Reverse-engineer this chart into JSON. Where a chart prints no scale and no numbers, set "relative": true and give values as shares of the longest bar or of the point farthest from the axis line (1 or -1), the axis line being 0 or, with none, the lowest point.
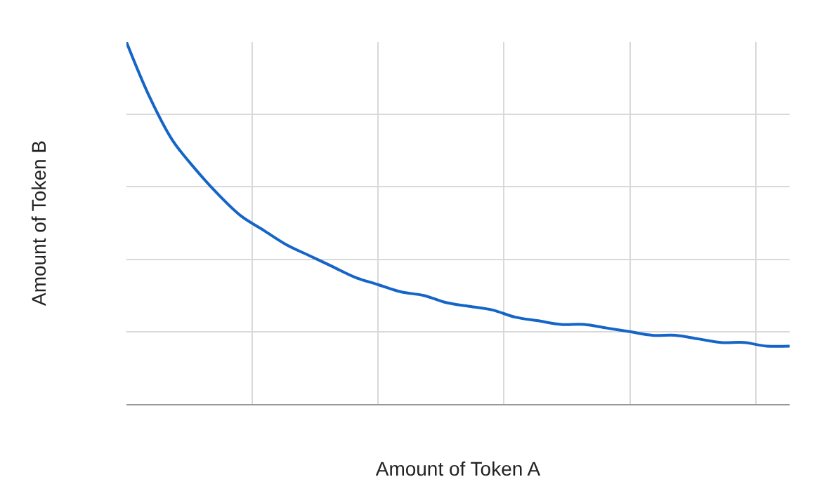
{
  "chart_data": {
    "type": "line",
    "relative": true,
    "xlabel": "Amount of Token A",
    "ylabel": "Amount of Token B",
    "grid": true,
    "marker": "none",
    "line_style": "solid",
    "categories": [
      null,
      null,
      null,
      null,
      null,
      null,
      null,
      null,
      null,
      null,
      null,
      null,
      null,
      null,
      null,
      null,
      null,
      null,
      null,
      null,
      null,
      null,
      null,
      null,
      null,
      null,
      null,
      null,
      null,
      null
    ],
    "series": [
      {
        "color": "#1565c8",
        "values": [
          1,
          0.85,
          0.73,
          0.65,
          0.58,
          0.52,
          0.48,
          0.44,
          0.41,
          0.38,
          0.35,
          0.33,
          0.31,
          0.3,
          0.28,
          0.27,
          0.26,
          0.24,
          0.23,
          0.22,
          0.22,
          0.21,
          0.2,
          0.19,
          0.19,
          0.18,
          0.17,
          0.17,
          0.16,
          0.16
        ]
      }
    ]
  }
}
